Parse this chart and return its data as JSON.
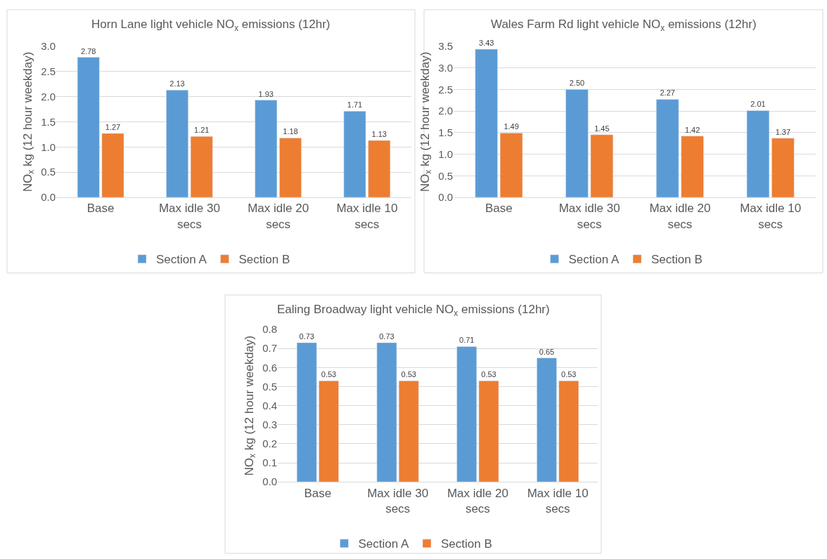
{
  "chart_data": [
    {
      "type": "bar",
      "title": "Horn Lane light vehicle NO$_{x}$ emissions (12hr)",
      "ylabel": "NO$_{x}$ kg (12 hour weekday)",
      "categories": [
        "Base",
        "Max idle 30 secs",
        "Max idle 20 secs",
        "Max idle 10 secs"
      ],
      "series": [
        {
          "name": "Section A",
          "color": "#5b9bd5",
          "values": [
            2.78,
            2.13,
            1.93,
            1.71
          ]
        },
        {
          "name": "Section B",
          "color": "#ed7d31",
          "values": [
            1.27,
            1.21,
            1.18,
            1.13
          ]
        }
      ],
      "ylim": [
        0,
        3.0
      ],
      "yticks": [
        {
          "value": 0,
          "label": "0.0"
        },
        {
          "value": 0.5,
          "label": "0.5"
        },
        {
          "value": 1.0,
          "label": "1.0"
        },
        {
          "value": 1.5,
          "label": "1.5"
        },
        {
          "value": 2.0,
          "label": "2.0"
        },
        {
          "value": 2.5,
          "label": "2.5"
        },
        {
          "value": 3.0,
          "label": "3.0"
        }
      ],
      "grid": "y",
      "legend": "bottom",
      "data_labels": true
    },
    {
      "type": "bar",
      "title": "Wales Farm Rd light vehicle NO$_{x}$ emissions (12hr)",
      "ylabel": "NO$_{x}$ kg (12 hour weekday)",
      "categories": [
        "Base",
        "Max idle 30 secs",
        "Max idle 20 secs",
        "Max idle 10 secs"
      ],
      "series": [
        {
          "name": "Section A",
          "color": "#5b9bd5",
          "values": [
            3.43,
            2.5,
            2.27,
            2.01
          ],
          "value_labels": [
            "3.43",
            "2.50",
            "2.27",
            "2.01"
          ]
        },
        {
          "name": "Section B",
          "color": "#ed7d31",
          "values": [
            1.49,
            1.45,
            1.42,
            1.37
          ]
        }
      ],
      "ylim": [
        0,
        3.5
      ],
      "yticks": [
        {
          "value": 0,
          "label": "0.0"
        },
        {
          "value": 0.5,
          "label": "0.5"
        },
        {
          "value": 1.0,
          "label": "1.0"
        },
        {
          "value": 1.5,
          "label": "1.5"
        },
        {
          "value": 2.0,
          "label": "2.0"
        },
        {
          "value": 2.5,
          "label": "2.5"
        },
        {
          "value": 3.0,
          "label": "3.0"
        },
        {
          "value": 3.5,
          "label": "3.5"
        }
      ],
      "grid": "y",
      "legend": "bottom",
      "data_labels": true
    },
    {
      "type": "bar",
      "title": "Ealing Broadway light vehicle NO$_{x}$ emissions (12hr)",
      "ylabel": "NO$_{x}$ kg (12 hour weekday)",
      "categories": [
        "Base",
        "Max idle 30 secs",
        "Max idle 20 secs",
        "Max idle 10 secs"
      ],
      "series": [
        {
          "name": "Section A",
          "color": "#5b9bd5",
          "values": [
            0.73,
            0.73,
            0.71,
            0.65
          ]
        },
        {
          "name": "Section B",
          "color": "#ed7d31",
          "values": [
            0.53,
            0.53,
            0.53,
            0.53
          ]
        }
      ],
      "ylim": [
        0,
        0.8
      ],
      "yticks": [
        {
          "value": 0,
          "label": "0.0"
        },
        {
          "value": 0.1,
          "label": "0.1"
        },
        {
          "value": 0.2,
          "label": "0.2"
        },
        {
          "value": 0.3,
          "label": "0.3"
        },
        {
          "value": 0.4,
          "label": "0.4"
        },
        {
          "value": 0.5,
          "label": "0.5"
        },
        {
          "value": 0.6,
          "label": "0.6"
        },
        {
          "value": 0.7,
          "label": "0.7"
        },
        {
          "value": 0.8,
          "label": "0.8"
        }
      ],
      "grid": "y",
      "legend": "bottom",
      "data_labels": true
    }
  ]
}
